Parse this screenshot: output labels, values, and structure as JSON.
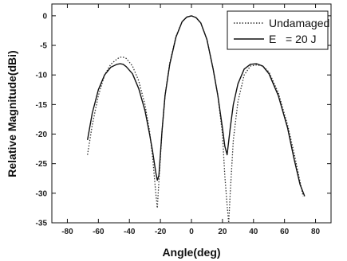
{
  "chart_data": {
    "type": "line",
    "xlabel": "Angle(deg)",
    "ylabel": "Relative Magnitude(dBi)",
    "xlim": [
      -90,
      90
    ],
    "ylim": [
      -35,
      2
    ],
    "xticks": [
      -80,
      -60,
      -40,
      -20,
      0,
      20,
      40,
      60,
      80
    ],
    "yticks": [
      0,
      -5,
      -10,
      -15,
      -20,
      -25,
      -30,
      -35
    ],
    "grid": false,
    "legend_position": "top-right",
    "series": [
      {
        "name": "Undamaged",
        "style": "dotted",
        "x": [
          -67,
          -64,
          -60,
          -56,
          -52,
          -48,
          -46,
          -44,
          -42,
          -38,
          -34,
          -30,
          -27,
          -25,
          -23,
          -22,
          -21,
          -19,
          -17,
          -14,
          -10,
          -6,
          -3,
          0,
          3,
          6,
          10,
          14,
          17,
          20,
          21.5,
          23,
          24,
          25,
          27,
          30,
          34,
          38,
          42,
          46,
          50,
          56,
          62,
          66,
          70,
          72
        ],
        "y": [
          -23.5,
          -18.5,
          -13.5,
          -10.0,
          -8.2,
          -7.3,
          -7.0,
          -7.0,
          -7.2,
          -8.5,
          -11.0,
          -15.0,
          -19.5,
          -24.0,
          -30.0,
          -32.5,
          -28.0,
          -19.5,
          -13.5,
          -8.0,
          -3.5,
          -1.0,
          -0.2,
          0.0,
          -0.3,
          -1.2,
          -4.0,
          -9.0,
          -13.5,
          -20.0,
          -27.0,
          -32.0,
          -35.0,
          -30.0,
          -21.0,
          -14.5,
          -10.0,
          -8.5,
          -8.3,
          -8.5,
          -9.5,
          -13.0,
          -18.5,
          -23.0,
          -28.0,
          -30.5
        ]
      },
      {
        "name": "E = 20 J",
        "style": "solid",
        "x": [
          -67,
          -64,
          -60,
          -56,
          -52,
          -48,
          -46,
          -44,
          -42,
          -38,
          -34,
          -30,
          -27,
          -25,
          -23,
          -22,
          -21,
          -19,
          -17,
          -14,
          -10,
          -6,
          -3,
          0,
          3,
          6,
          10,
          14,
          17,
          20,
          21.5,
          23,
          25,
          27,
          30,
          34,
          38,
          42,
          46,
          50,
          56,
          62,
          66,
          70,
          73
        ],
        "y": [
          -21.0,
          -16.5,
          -12.5,
          -10.0,
          -8.7,
          -8.2,
          -8.1,
          -8.2,
          -8.6,
          -9.8,
          -12.3,
          -16.0,
          -20.0,
          -23.0,
          -26.5,
          -27.8,
          -27.0,
          -19.5,
          -13.5,
          -8.2,
          -3.6,
          -1.0,
          -0.2,
          0.0,
          -0.3,
          -1.2,
          -4.0,
          -9.0,
          -13.5,
          -19.0,
          -22.0,
          -23.5,
          -19.0,
          -15.0,
          -11.5,
          -9.0,
          -8.2,
          -8.1,
          -8.5,
          -9.8,
          -13.5,
          -19.0,
          -24.0,
          -28.5,
          -30.5
        ]
      }
    ]
  },
  "legend": {
    "items": [
      {
        "label": "Undamaged"
      },
      {
        "label": "E   = 20 J"
      }
    ]
  }
}
